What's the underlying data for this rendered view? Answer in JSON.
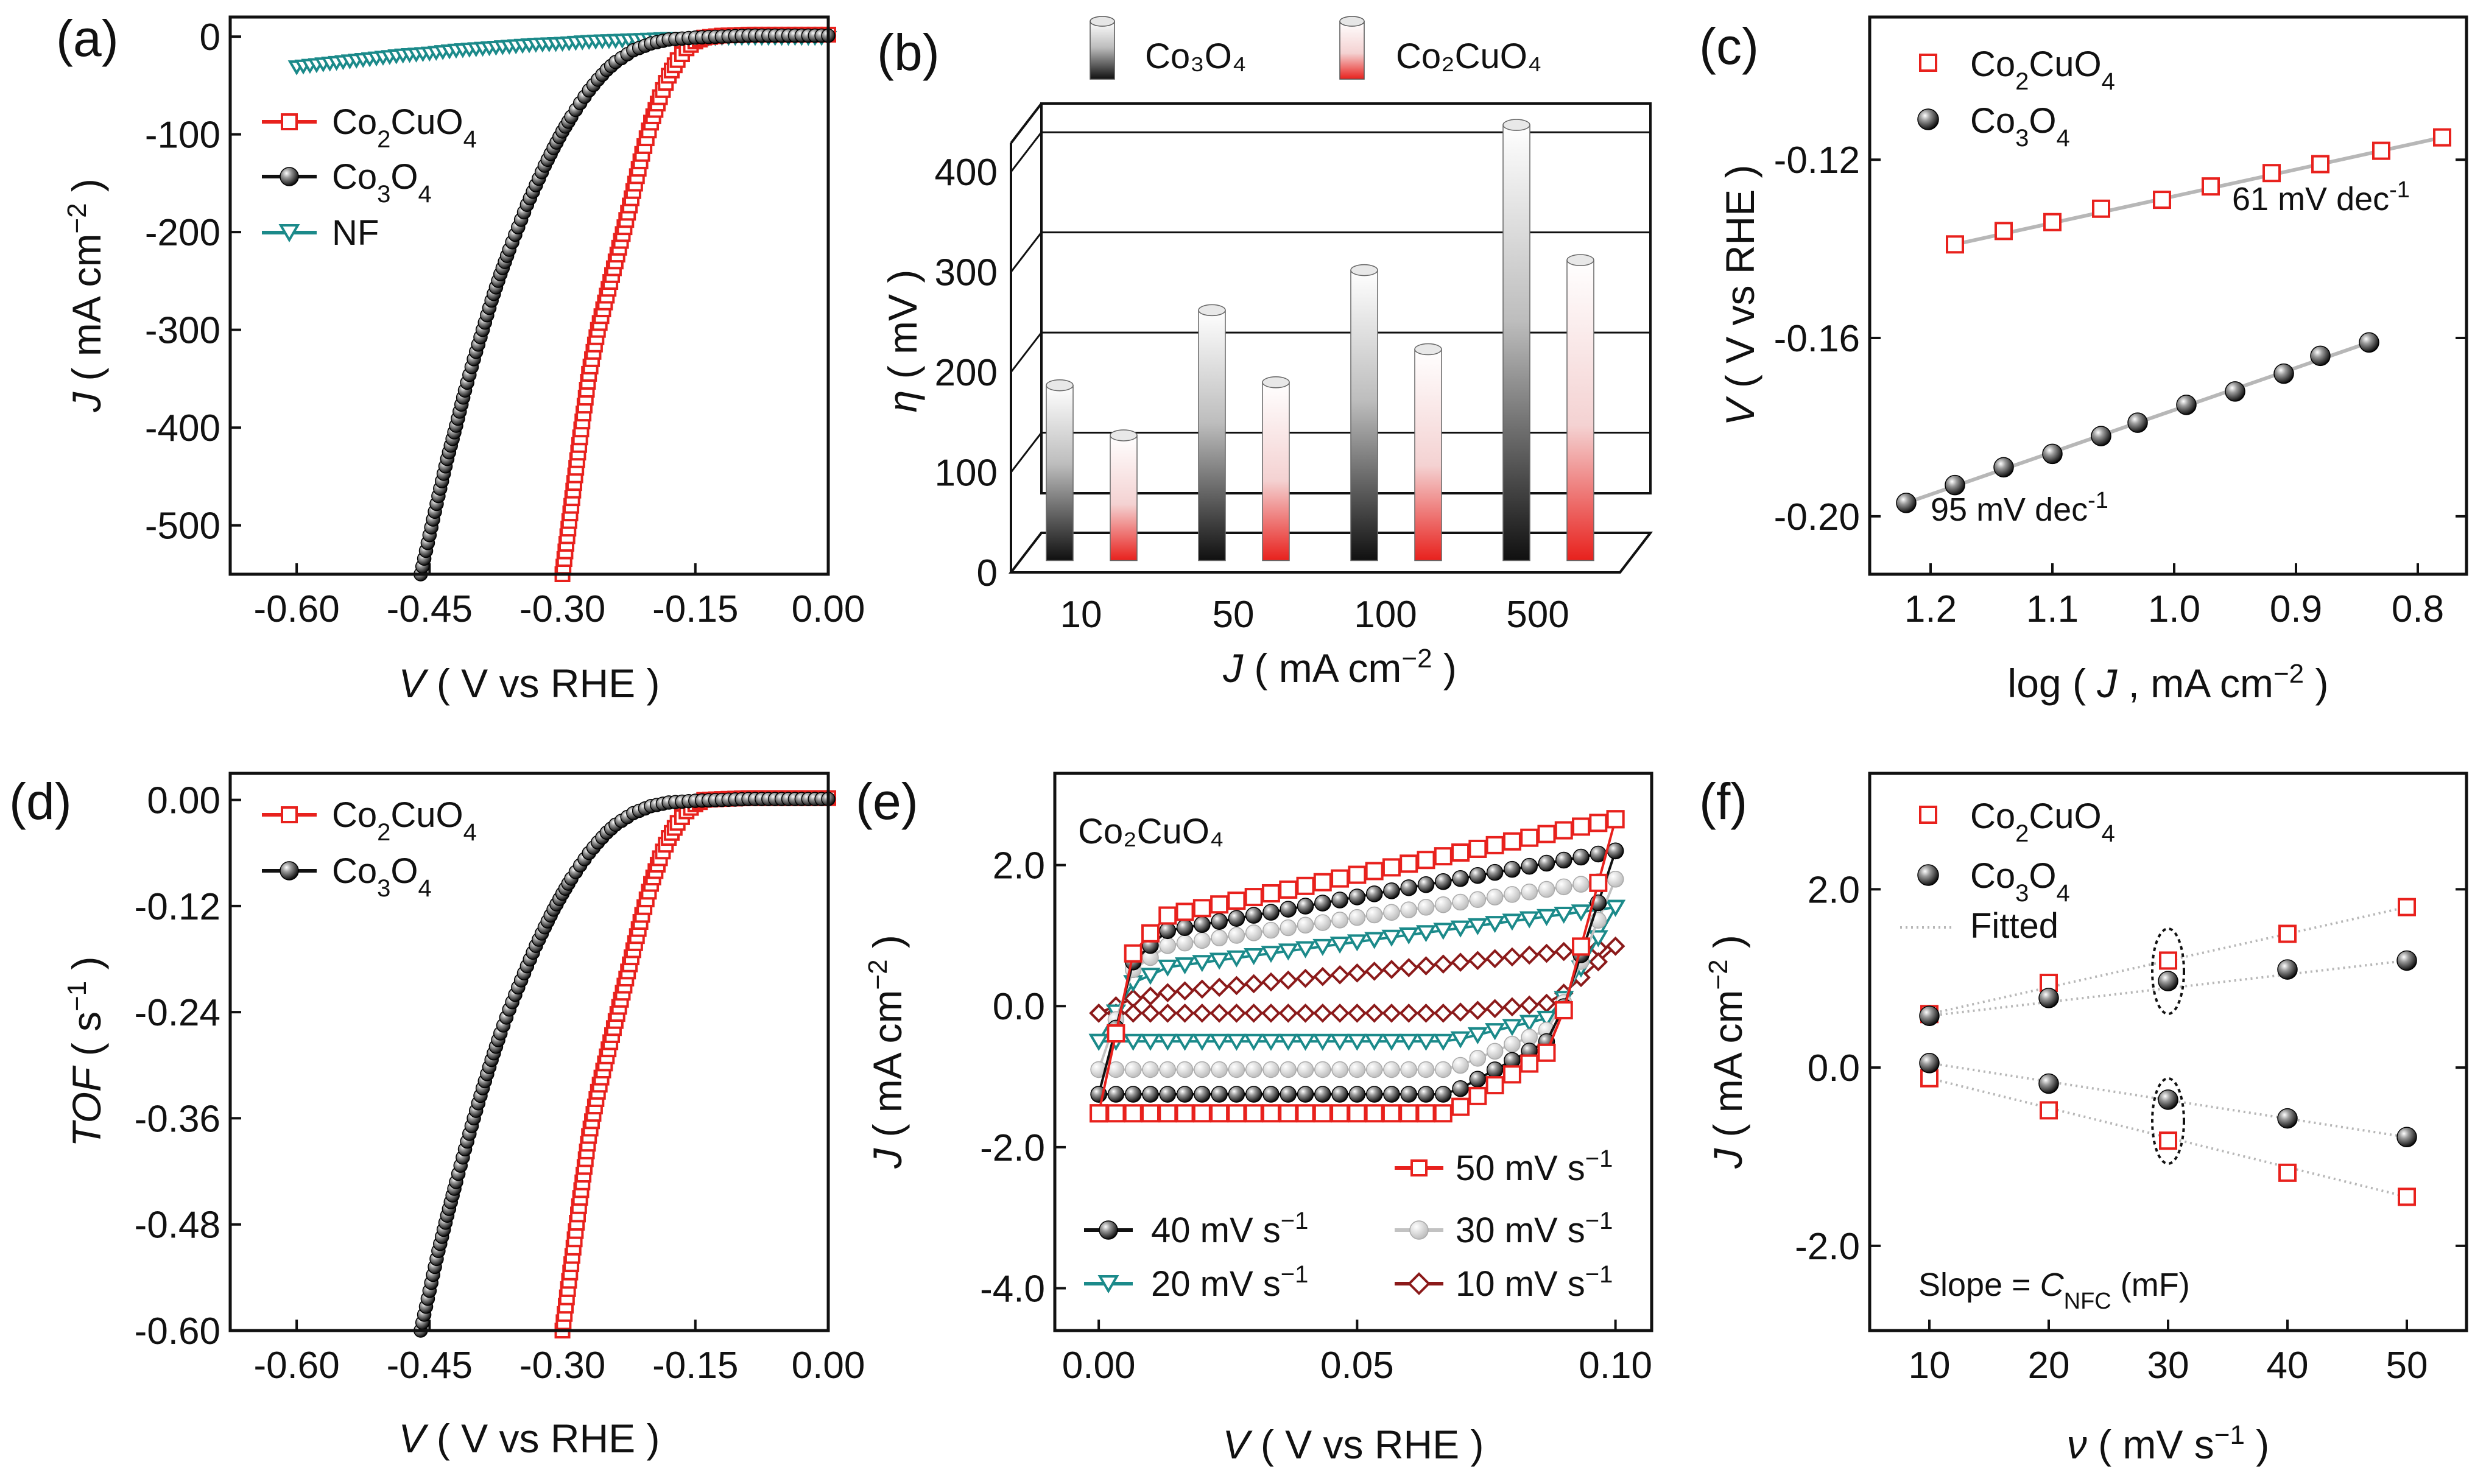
{
  "figure": {
    "panels": {
      "a": {
        "label": "(a)"
      },
      "b": {
        "label": "(b)"
      },
      "c": {
        "label": "(c)"
      },
      "d": {
        "label": "(d)"
      },
      "e": {
        "label": "(e)"
      },
      "f": {
        "label": "(f)"
      }
    }
  },
  "colors": {
    "red": "#e8211d",
    "black": "#111111",
    "teal": "#1b8a8a",
    "gray": "#c2c2c2",
    "darkred": "#8b1a1a",
    "fitline": "#b7b7b7"
  },
  "chart_data": [
    {
      "id": "a",
      "type": "line",
      "xlabel_italic": "V",
      "xlabel_rest": " ( V vs RHE )",
      "ylabel_italic": "J",
      "ylabel_rest": " ( mA cm",
      "ylabel_sup": "−2",
      "ylabel_end": " )",
      "xlim": [
        -0.675,
        0.0
      ],
      "ylim": [
        -550,
        20
      ],
      "xticks": [
        "-0.60",
        "-0.45",
        "-0.30",
        "-0.15",
        "0.00"
      ],
      "xtick_values": [
        -0.6,
        -0.45,
        -0.3,
        -0.15,
        0.0
      ],
      "yticks": [
        "0",
        "-100",
        "-200",
        "-300",
        "-400",
        "-500"
      ],
      "ytick_values": [
        0,
        -100,
        -200,
        -300,
        -400,
        -500
      ],
      "series": [
        {
          "name": "Co₂CuO₄",
          "color": "#e8211d",
          "marker": "square",
          "points": [
            [
              -0.3,
              -550
            ],
            [
              -0.29,
              -480
            ],
            [
              -0.28,
              -410
            ],
            [
              -0.27,
              -345
            ],
            [
              -0.26,
              -300
            ],
            [
              -0.25,
              -265
            ],
            [
              -0.24,
              -230
            ],
            [
              -0.23,
              -195
            ],
            [
              -0.22,
              -158
            ],
            [
              -0.21,
              -120
            ],
            [
              -0.2,
              -88
            ],
            [
              -0.19,
              -62
            ],
            [
              -0.18,
              -40
            ],
            [
              -0.17,
              -24
            ],
            [
              -0.16,
              -12
            ],
            [
              -0.15,
              -5
            ],
            [
              -0.14,
              -1
            ],
            [
              -0.12,
              1
            ],
            [
              -0.09,
              2
            ],
            [
              -0.06,
              2
            ],
            [
              -0.03,
              2
            ],
            [
              0.0,
              2
            ]
          ]
        },
        {
          "name": "Co₃O₄",
          "color": "#111111",
          "marker": "circle",
          "points": [
            [
              -0.46,
              -550
            ],
            [
              -0.45,
              -510
            ],
            [
              -0.44,
              -470
            ],
            [
              -0.43,
              -432
            ],
            [
              -0.42,
              -398
            ],
            [
              -0.41,
              -362
            ],
            [
              -0.4,
              -330
            ],
            [
              -0.39,
              -300
            ],
            [
              -0.38,
              -270
            ],
            [
              -0.37,
              -243
            ],
            [
              -0.36,
              -218
            ],
            [
              -0.35,
              -195
            ],
            [
              -0.34,
              -172
            ],
            [
              -0.33,
              -152
            ],
            [
              -0.32,
              -132
            ],
            [
              -0.31,
              -114
            ],
            [
              -0.3,
              -97
            ],
            [
              -0.29,
              -82
            ],
            [
              -0.28,
              -68
            ],
            [
              -0.27,
              -55
            ],
            [
              -0.26,
              -44
            ],
            [
              -0.25,
              -34
            ],
            [
              -0.24,
              -26
            ],
            [
              -0.22,
              -14
            ],
            [
              -0.2,
              -7
            ],
            [
              -0.18,
              -3
            ],
            [
              -0.15,
              -1
            ],
            [
              -0.12,
              0
            ],
            [
              -0.09,
              1
            ],
            [
              -0.06,
              1
            ],
            [
              -0.03,
              1
            ],
            [
              0.0,
              1
            ]
          ]
        },
        {
          "name": "NF",
          "color": "#1b8a8a",
          "marker": "triangle-down",
          "points": [
            [
              -0.6,
              -31
            ],
            [
              -0.57,
              -28
            ],
            [
              -0.54,
              -25
            ],
            [
              -0.51,
              -22
            ],
            [
              -0.48,
              -19
            ],
            [
              -0.45,
              -17
            ],
            [
              -0.42,
              -14
            ],
            [
              -0.39,
              -12
            ],
            [
              -0.36,
              -10
            ],
            [
              -0.33,
              -8
            ],
            [
              -0.3,
              -7
            ],
            [
              -0.27,
              -5
            ],
            [
              -0.24,
              -4
            ],
            [
              -0.21,
              -3
            ],
            [
              -0.18,
              -2
            ],
            [
              -0.15,
              -2
            ],
            [
              -0.12,
              -1
            ],
            [
              -0.09,
              -1
            ],
            [
              -0.06,
              -1
            ],
            [
              -0.03,
              -1
            ],
            [
              0.0,
              -1
            ]
          ]
        }
      ]
    },
    {
      "id": "b",
      "type": "bar",
      "xlabel_italic": "J",
      "xlabel_rest": " ( mA cm",
      "xlabel_sup": "−2",
      "xlabel_end": " )",
      "ylabel_italic": "η",
      "ylabel_rest": " ( mV )",
      "categories": [
        "10",
        "50",
        "100",
        "500"
      ],
      "ylim": [
        0,
        450
      ],
      "yticks": [
        "0",
        "100",
        "200",
        "300",
        "400"
      ],
      "ytick_values": [
        0,
        100,
        200,
        300,
        400
      ],
      "legend_entries": [
        "Co₃O₄",
        "Co₂CuO₄"
      ],
      "series": [
        {
          "name": "Co₃O₄",
          "values": [
            175,
            250,
            290,
            435
          ]
        },
        {
          "name": "Co₂CuO₄",
          "values": [
            125,
            178,
            211,
            300
          ]
        }
      ]
    },
    {
      "id": "c",
      "type": "scatter",
      "xlabel": "log ( ",
      "xlabel_italic": "J",
      "xlabel_rest": " , mA cm",
      "xlabel_sup": "−2",
      "xlabel_end": " )",
      "ylabel_italic": "V",
      "ylabel_rest": " ( V vs RHE )",
      "xlim": [
        1.25,
        0.76
      ],
      "ylim": [
        -0.213,
        -0.088
      ],
      "xticks": [
        "1.2",
        "1.1",
        "1.0",
        "0.9",
        "0.8"
      ],
      "xtick_values": [
        1.2,
        1.1,
        1.0,
        0.9,
        0.8
      ],
      "yticks": [
        "-0.12",
        "-0.16",
        "-0.20"
      ],
      "ytick_values": [
        -0.12,
        -0.16,
        -0.2
      ],
      "series": [
        {
          "name": "Co₂CuO₄",
          "marker": "square-open",
          "color": "#e8211d",
          "x": [
            1.18,
            1.14,
            1.1,
            1.06,
            1.01,
            0.97,
            0.92,
            0.88,
            0.83,
            0.78
          ],
          "y": [
            -0.139,
            -0.136,
            -0.134,
            -0.131,
            -0.129,
            -0.126,
            -0.123,
            -0.121,
            -0.118,
            -0.115
          ],
          "slope_label": "61 mV dec",
          "slope_sup": "-1"
        },
        {
          "name": "Co₃O₄",
          "marker": "sphere",
          "color": "#111111",
          "x": [
            1.22,
            1.18,
            1.14,
            1.1,
            1.06,
            1.03,
            0.99,
            0.95,
            0.91,
            0.88,
            0.84
          ],
          "y": [
            -0.197,
            -0.193,
            -0.189,
            -0.186,
            -0.182,
            -0.179,
            -0.175,
            -0.172,
            -0.168,
            -0.164,
            -0.161
          ],
          "slope_label": "95 mV dec",
          "slope_sup": "-1"
        }
      ]
    },
    {
      "id": "d",
      "type": "line",
      "xlabel_italic": "V",
      "xlabel_rest": " ( V vs RHE )",
      "ylabel_italic": "TOF",
      "ylabel_rest": " ( s",
      "ylabel_sup": "−1",
      "ylabel_end": " )",
      "xlim": [
        -0.675,
        0.0
      ],
      "ylim": [
        -0.6,
        0.03
      ],
      "xticks": [
        "-0.60",
        "-0.45",
        "-0.30",
        "-0.15",
        "0.00"
      ],
      "xtick_values": [
        -0.6,
        -0.45,
        -0.3,
        -0.15,
        0.0
      ],
      "yticks": [
        "0.00",
        "-0.12",
        "-0.24",
        "-0.36",
        "-0.48",
        "-0.60"
      ],
      "ytick_values": [
        0.0,
        -0.12,
        -0.24,
        -0.36,
        -0.48,
        -0.6
      ],
      "series": [
        {
          "name": "Co₂CuO₄",
          "color": "#e8211d",
          "marker": "square",
          "points": [
            [
              -0.3,
              -0.6
            ],
            [
              -0.29,
              -0.525
            ],
            [
              -0.28,
              -0.45
            ],
            [
              -0.27,
              -0.38
            ],
            [
              -0.26,
              -0.33
            ],
            [
              -0.25,
              -0.29
            ],
            [
              -0.24,
              -0.25
            ],
            [
              -0.23,
              -0.21
            ],
            [
              -0.22,
              -0.17
            ],
            [
              -0.21,
              -0.13
            ],
            [
              -0.2,
              -0.095
            ],
            [
              -0.19,
              -0.066
            ],
            [
              -0.18,
              -0.043
            ],
            [
              -0.17,
              -0.026
            ],
            [
              -0.16,
              -0.013
            ],
            [
              -0.15,
              -0.005
            ],
            [
              -0.14,
              0
            ],
            [
              -0.12,
              0.001
            ],
            [
              -0.09,
              0.002
            ],
            [
              -0.06,
              0.002
            ],
            [
              -0.03,
              0.002
            ],
            [
              0.0,
              0.002
            ]
          ]
        },
        {
          "name": "Co₃O₄",
          "color": "#111111",
          "marker": "circle",
          "points": [
            [
              -0.46,
              -0.6
            ],
            [
              -0.45,
              -0.555
            ],
            [
              -0.44,
              -0.51
            ],
            [
              -0.43,
              -0.47
            ],
            [
              -0.42,
              -0.432
            ],
            [
              -0.41,
              -0.395
            ],
            [
              -0.4,
              -0.36
            ],
            [
              -0.39,
              -0.326
            ],
            [
              -0.38,
              -0.294
            ],
            [
              -0.37,
              -0.264
            ],
            [
              -0.36,
              -0.237
            ],
            [
              -0.35,
              -0.212
            ],
            [
              -0.34,
              -0.188
            ],
            [
              -0.33,
              -0.165
            ],
            [
              -0.32,
              -0.144
            ],
            [
              -0.31,
              -0.124
            ],
            [
              -0.3,
              -0.106
            ],
            [
              -0.29,
              -0.089
            ],
            [
              -0.28,
              -0.074
            ],
            [
              -0.27,
              -0.06
            ],
            [
              -0.26,
              -0.048
            ],
            [
              -0.25,
              -0.037
            ],
            [
              -0.24,
              -0.028
            ],
            [
              -0.22,
              -0.015
            ],
            [
              -0.2,
              -0.007
            ],
            [
              -0.18,
              -0.003
            ],
            [
              -0.15,
              -0.001
            ],
            [
              -0.12,
              0
            ],
            [
              -0.09,
              0.001
            ],
            [
              -0.06,
              0.001
            ],
            [
              -0.03,
              0.001
            ],
            [
              0.0,
              0.001
            ]
          ]
        }
      ]
    },
    {
      "id": "e",
      "type": "line",
      "xlabel_italic": "V",
      "xlabel_rest": " ( V vs RHE )",
      "ylabel_italic": "J",
      "ylabel_rest": " ( mA cm",
      "ylabel_sup": "−2",
      "ylabel_end": " )",
      "xlim": [
        -0.0085,
        0.107
      ],
      "ylim": [
        -4.6,
        3.3
      ],
      "xticks": [
        "0.00",
        "0.05",
        "0.10"
      ],
      "xtick_values": [
        0.0,
        0.05,
        0.1
      ],
      "yticks": [
        "2.0",
        "0.0",
        "-2.0",
        "-4.0"
      ],
      "ytick_values": [
        2.0,
        0.0,
        -2.0,
        -4.0
      ],
      "inset_title": "Co₂CuO₄",
      "series": [
        {
          "name": "50 mV s",
          "sup": "−1",
          "color": "#e8211d",
          "marker": "square",
          "upper_start": 0.0,
          "upper_end": 2.65,
          "knee_top": 1.2,
          "lower_level": -1.52,
          "lower_end": -0.6
        },
        {
          "name": "40 mV s",
          "sup": "−1",
          "color": "#111111",
          "marker": "circle",
          "upper_start": 0.0,
          "upper_end": 2.2,
          "knee_top": 1.0,
          "lower_level": -1.25,
          "lower_end": -0.45
        },
        {
          "name": "30 mV s",
          "sup": "−1",
          "color": "#c2c2c2",
          "marker": "circle",
          "upper_start": 0.0,
          "upper_end": 1.8,
          "knee_top": 0.8,
          "lower_level": -0.9,
          "lower_end": -0.3
        },
        {
          "name": "20 mV s",
          "sup": "−1",
          "color": "#1b8a8a",
          "marker": "triangle-down",
          "upper_start": -0.05,
          "upper_end": 1.4,
          "knee_top": 0.5,
          "lower_level": -0.5,
          "lower_end": -0.15
        },
        {
          "name": "10 mV s",
          "sup": "−1",
          "color": "#8b1a1a",
          "marker": "diamond",
          "upper_start": -0.1,
          "upper_end": 0.85,
          "knee_top": 0.15,
          "lower_level": -0.1,
          "lower_end": 0.05
        }
      ]
    },
    {
      "id": "f",
      "type": "scatter",
      "xlabel_italic": "ν",
      "xlabel_rest": " ( mV s",
      "xlabel_sup": "−1",
      "xlabel_end": " )",
      "ylabel_italic": "J",
      "ylabel_rest": " ( mA cm",
      "ylabel_sup": "−2",
      "ylabel_end": " )",
      "xlim": [
        5,
        55
      ],
      "ylim": [
        -2.95,
        3.3
      ],
      "xticks": [
        "10",
        "20",
        "30",
        "40",
        "50"
      ],
      "xtick_values": [
        10,
        20,
        30,
        40,
        50
      ],
      "yticks": [
        "2.0",
        "0.0",
        "-2.0"
      ],
      "ytick_values": [
        2.0,
        0.0,
        -2.0
      ],
      "x": [
        10,
        20,
        30,
        40,
        50
      ],
      "series": [
        {
          "name": "Co₂CuO₄",
          "marker": "square-open",
          "color": "#e8211d",
          "anodic": [
            0.6,
            0.95,
            1.2,
            1.5,
            1.8
          ],
          "cathodic": [
            -0.12,
            -0.48,
            -0.82,
            -1.18,
            -1.45
          ]
        },
        {
          "name": "Co₃O₄",
          "marker": "sphere",
          "color": "#111111",
          "anodic": [
            0.58,
            0.78,
            0.97,
            1.1,
            1.2
          ],
          "cathodic": [
            0.05,
            -0.18,
            -0.36,
            -0.57,
            -0.78
          ]
        }
      ],
      "fitted_label": "Fitted",
      "annotation_prefix": "Slope = ",
      "annotation_italic": "C",
      "annotation_sub": "NFC",
      "annotation_suffix": " (mF)"
    }
  ]
}
